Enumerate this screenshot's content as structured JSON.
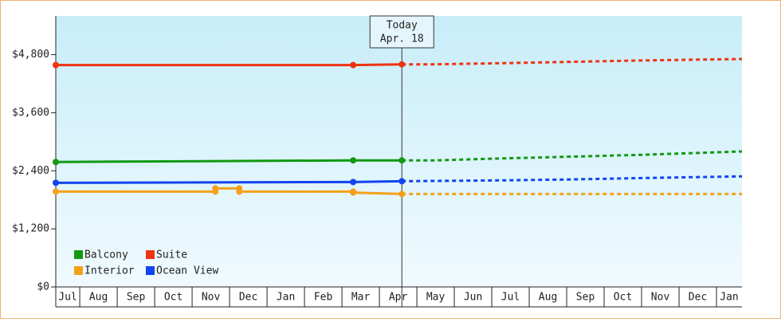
{
  "chart_data": {
    "type": "line",
    "ylim": [
      0,
      5600
    ],
    "yticks": [
      {
        "value": 0,
        "label": "$0"
      },
      {
        "value": 1200,
        "label": "$1,200"
      },
      {
        "value": 2400,
        "label": "$2,400"
      },
      {
        "value": 3600,
        "label": "$3,600"
      },
      {
        "value": 4800,
        "label": "$4,800"
      }
    ],
    "xlim": [
      0.36,
      18.68
    ],
    "xticks": [
      {
        "value": 0,
        "label": "Jul"
      },
      {
        "value": 1,
        "label": "Aug"
      },
      {
        "value": 2,
        "label": "Sep"
      },
      {
        "value": 3,
        "label": "Oct"
      },
      {
        "value": 4,
        "label": "Nov"
      },
      {
        "value": 5,
        "label": "Dec"
      },
      {
        "value": 6,
        "label": "Jan"
      },
      {
        "value": 7,
        "label": "Feb"
      },
      {
        "value": 8,
        "label": "Mar"
      },
      {
        "value": 9,
        "label": "Apr"
      },
      {
        "value": 10,
        "label": "May"
      },
      {
        "value": 11,
        "label": "Jun"
      },
      {
        "value": 12,
        "label": "Jul"
      },
      {
        "value": 13,
        "label": "Aug"
      },
      {
        "value": 14,
        "label": "Sep"
      },
      {
        "value": 15,
        "label": "Oct"
      },
      {
        "value": 16,
        "label": "Nov"
      },
      {
        "value": 17,
        "label": "Dec"
      },
      {
        "value": 18,
        "label": "Jan"
      }
    ],
    "today": {
      "label": "Today",
      "date": "Apr. 18",
      "x": 9.6
    },
    "grid": false,
    "legend": "bottom-left",
    "series": [
      {
        "name": "Balcony",
        "color": "#119911",
        "x": [
          0.36,
          8.3,
          9.6,
          10.5,
          12,
          14,
          16,
          18.68
        ],
        "values": [
          2582,
          2615,
          2615,
          2615,
          2650,
          2690,
          2730,
          2800
        ]
      },
      {
        "name": "Suite",
        "color": "#ee3311",
        "x": [
          0.36,
          8.3,
          9.6,
          10.4,
          12,
          14,
          16,
          18.68
        ],
        "values": [
          4585,
          4585,
          4600,
          4600,
          4620,
          4650,
          4680,
          4710
        ]
      },
      {
        "name": "Interior",
        "color": "#f4a11a",
        "x": [
          0.36,
          4.62,
          4.62,
          5.26,
          5.26,
          8.3,
          8.3,
          9.6,
          18.68
        ],
        "values": [
          1970,
          1970,
          2036,
          2036,
          1970,
          1970,
          1950,
          1920,
          1920
        ]
      },
      {
        "name": "Ocean View",
        "color": "#1144ee",
        "x": [
          0.36,
          8.3,
          9.6,
          12,
          14,
          16,
          18.68
        ],
        "values": [
          2152,
          2168,
          2185,
          2200,
          2220,
          2250,
          2285
        ]
      }
    ]
  }
}
